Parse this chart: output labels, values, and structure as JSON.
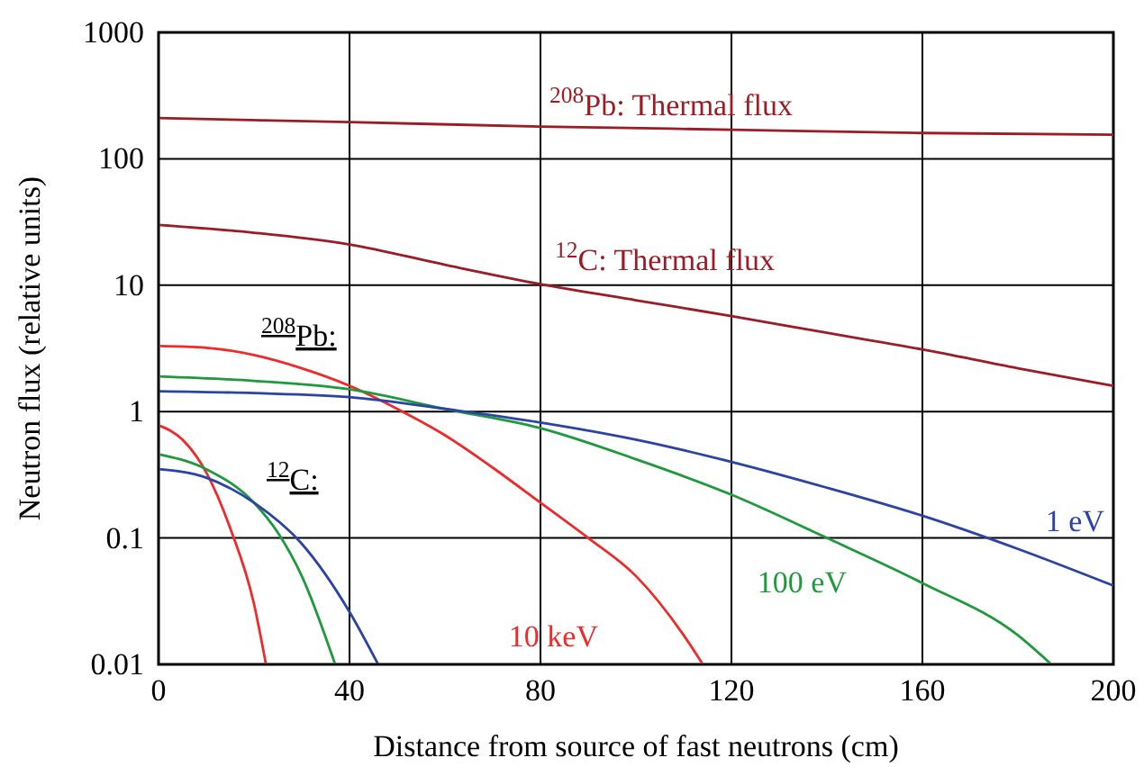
{
  "chart_data": {
    "type": "line",
    "xlabel": "Distance from source of fast neutrons (cm)",
    "ylabel": "Neutron flux (relative units)",
    "log": "y",
    "grid": true,
    "legend": false,
    "marker": "none",
    "line_style": "solid",
    "xlim": [
      0,
      200
    ],
    "xticks": [
      0,
      40,
      80,
      120,
      160,
      200
    ],
    "ylim": [
      0.01,
      1000
    ],
    "yticks": [
      0.01,
      0.1,
      1,
      10,
      100,
      1000
    ],
    "annotations": [
      "$^{208}$Pb:",
      "$^{12}$C:"
    ],
    "series": [
      {
        "name": "$^{208}$Pb: Thermal flux",
        "color": "#9b1c24",
        "x": [
          0,
          40,
          80,
          120,
          160,
          200
        ],
        "values": [
          210,
          195,
          180,
          170,
          160,
          155
        ]
      },
      {
        "name": "$^{12}$C: Thermal flux",
        "color": "#9b1c24",
        "x": [
          0,
          20,
          40,
          60,
          80,
          100,
          120,
          140,
          160,
          180,
          200
        ],
        "values": [
          30,
          26,
          21,
          14.5,
          10.2,
          7.6,
          5.7,
          4.2,
          3.1,
          2.2,
          1.6
        ]
      },
      {
        "name": "10 keV",
        "color": "#ee2a2a",
        "x": [
          0,
          10,
          20,
          30,
          40,
          50,
          60,
          70,
          80,
          90,
          100,
          110,
          114
        ],
        "values": [
          3.3,
          3.2,
          2.8,
          2.2,
          1.6,
          1.05,
          0.65,
          0.36,
          0.19,
          0.1,
          0.05,
          0.017,
          0.01
        ]
      },
      {
        "name": "100 eV",
        "color": "#1e9a3c",
        "x": [
          0,
          20,
          40,
          60,
          80,
          100,
          120,
          140,
          160,
          180,
          187
        ],
        "values": [
          1.9,
          1.75,
          1.5,
          1.05,
          0.74,
          0.42,
          0.22,
          0.1,
          0.044,
          0.017,
          0.01
        ]
      },
      {
        "name": "1 eV",
        "color": "#2b43a5",
        "x": [
          0,
          20,
          40,
          60,
          80,
          100,
          120,
          140,
          160,
          180,
          200
        ],
        "values": [
          1.45,
          1.4,
          1.3,
          1.05,
          0.82,
          0.6,
          0.4,
          0.25,
          0.15,
          0.082,
          0.042
        ]
      },
      {
        "color": "#ee2a2a",
        "x": [
          0,
          5,
          10,
          15,
          20,
          22.5
        ],
        "values": [
          0.78,
          0.6,
          0.33,
          0.12,
          0.03,
          0.01
        ]
      },
      {
        "color": "#1e9a3c",
        "x": [
          0,
          10,
          20,
          25,
          30,
          37
        ],
        "values": [
          0.46,
          0.35,
          0.19,
          0.11,
          0.05,
          0.01
        ]
      },
      {
        "color": "#2b43a5",
        "x": [
          0,
          10,
          20,
          30,
          40,
          46
        ],
        "values": [
          0.35,
          0.3,
          0.19,
          0.09,
          0.026,
          0.01
        ]
      }
    ]
  }
}
